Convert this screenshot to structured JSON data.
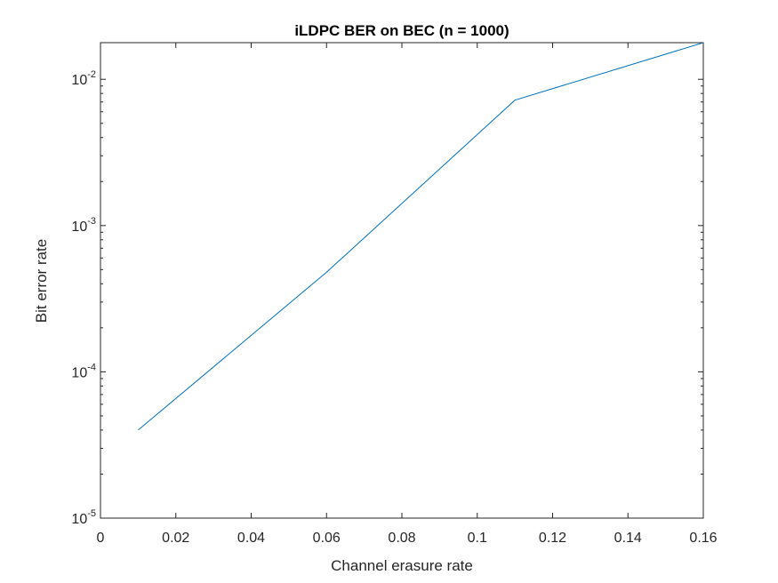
{
  "chart_data": {
    "type": "line",
    "title": "iLDPC BER on BEC (n = 1000)",
    "xlabel": "Channel erasure rate",
    "ylabel": "Bit error rate",
    "xlim": [
      0,
      0.16
    ],
    "ylim": [
      1e-05,
      0.0178
    ],
    "yscale": "log",
    "grid": false,
    "x_ticks": [
      "0",
      "0.02",
      "0.04",
      "0.06",
      "0.08",
      "0.1",
      "0.12",
      "0.14",
      "0.16"
    ],
    "y_ticks": [
      {
        "base": "10",
        "exp": "-5"
      },
      {
        "base": "10",
        "exp": "-4"
      },
      {
        "base": "10",
        "exp": "-3"
      },
      {
        "base": "10",
        "exp": "-2"
      }
    ],
    "series": [
      {
        "color": "#0072BD",
        "x": [
          0.01,
          0.06,
          0.11,
          0.16
        ],
        "y": [
          4e-05,
          0.00048,
          0.0072,
          0.0178
        ]
      }
    ]
  }
}
